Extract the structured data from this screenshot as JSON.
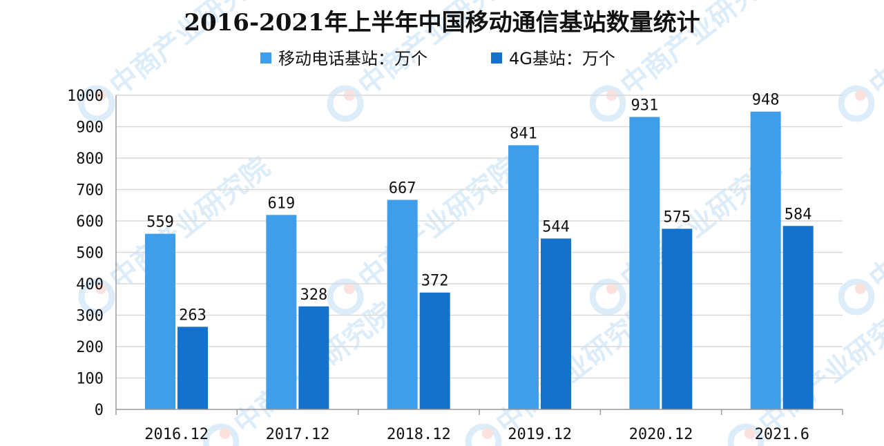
{
  "chart_data": {
    "type": "bar",
    "title": "2016-2021年上半年中国移动通信基站数量统计",
    "categories": [
      "2016.12",
      "2017.12",
      "2018.12",
      "2019.12",
      "2020.12",
      "2021.6"
    ],
    "series": [
      {
        "name": "移动电话基站：万个",
        "color": "#3E9EEB",
        "values": [
          559,
          619,
          667,
          841,
          931,
          948
        ]
      },
      {
        "name": "4G基站：万个",
        "color": "#1272CC",
        "values": [
          263,
          328,
          372,
          544,
          575,
          584
        ]
      }
    ],
    "xlabel": "",
    "ylabel": "",
    "ylim": [
      0,
      1000
    ],
    "yticks": [
      "0",
      "100",
      "200",
      "300",
      "400",
      "500",
      "600",
      "700",
      "800",
      "900",
      "1000"
    ],
    "grid": true,
    "legend_position": "top-center",
    "watermark": "中商产业研究院"
  }
}
